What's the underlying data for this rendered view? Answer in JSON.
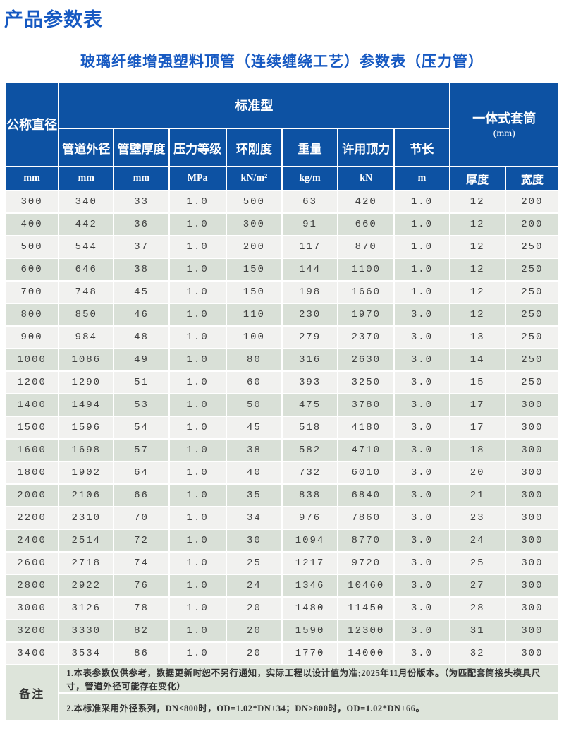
{
  "page": {
    "title": "产品参数表",
    "subtitle": "玻璃纤维增强塑料顶管（连续缠绕工艺）参数表（压力管）"
  },
  "colors": {
    "title_blue": "#1659c2",
    "header_blue": "#0d52a3",
    "row_light": "#f1f1ef",
    "row_green": "#d9e0d7",
    "notes_bg": "#dde4da"
  },
  "table": {
    "header": {
      "col_nominal_diameter": "公称直径",
      "group_standard": "标准型",
      "group_sleeve_line1": "一体式套筒",
      "group_sleeve_line2": "(mm)",
      "sub_columns": [
        "管道外径",
        "管壁厚度",
        "压力等级",
        "环刚度",
        "重量",
        "许用顶力",
        "节长"
      ],
      "units": [
        "mm",
        "mm",
        "mm",
        "MPa",
        "kN/m²",
        "kg/m",
        "kN",
        "m"
      ],
      "sleeve_sub_columns": [
        "厚度",
        "宽度"
      ]
    },
    "rows": [
      [
        "300",
        "340",
        "33",
        "1.0",
        "500",
        "63",
        "420",
        "1.0",
        "12",
        "200"
      ],
      [
        "400",
        "442",
        "36",
        "1.0",
        "300",
        "91",
        "660",
        "1.0",
        "12",
        "200"
      ],
      [
        "500",
        "544",
        "37",
        "1.0",
        "200",
        "117",
        "870",
        "1.0",
        "12",
        "250"
      ],
      [
        "600",
        "646",
        "38",
        "1.0",
        "150",
        "144",
        "1100",
        "1.0",
        "12",
        "250"
      ],
      [
        "700",
        "748",
        "45",
        "1.0",
        "150",
        "198",
        "1660",
        "1.0",
        "12",
        "250"
      ],
      [
        "800",
        "850",
        "46",
        "1.0",
        "110",
        "230",
        "1970",
        "3.0",
        "12",
        "250"
      ],
      [
        "900",
        "984",
        "48",
        "1.0",
        "100",
        "279",
        "2370",
        "3.0",
        "13",
        "250"
      ],
      [
        "1000",
        "1086",
        "49",
        "1.0",
        "80",
        "316",
        "2630",
        "3.0",
        "14",
        "250"
      ],
      [
        "1200",
        "1290",
        "51",
        "1.0",
        "60",
        "393",
        "3250",
        "3.0",
        "15",
        "250"
      ],
      [
        "1400",
        "1494",
        "53",
        "1.0",
        "50",
        "475",
        "3780",
        "3.0",
        "17",
        "300"
      ],
      [
        "1500",
        "1596",
        "54",
        "1.0",
        "45",
        "518",
        "4180",
        "3.0",
        "17",
        "300"
      ],
      [
        "1600",
        "1698",
        "57",
        "1.0",
        "38",
        "582",
        "4710",
        "3.0",
        "18",
        "300"
      ],
      [
        "1800",
        "1902",
        "64",
        "1.0",
        "40",
        "732",
        "6010",
        "3.0",
        "20",
        "300"
      ],
      [
        "2000",
        "2106",
        "66",
        "1.0",
        "35",
        "838",
        "6840",
        "3.0",
        "21",
        "300"
      ],
      [
        "2200",
        "2310",
        "70",
        "1.0",
        "34",
        "976",
        "7860",
        "3.0",
        "23",
        "300"
      ],
      [
        "2400",
        "2514",
        "72",
        "1.0",
        "30",
        "1094",
        "8770",
        "3.0",
        "24",
        "300"
      ],
      [
        "2600",
        "2718",
        "74",
        "1.0",
        "25",
        "1217",
        "9720",
        "3.0",
        "25",
        "300"
      ],
      [
        "2800",
        "2922",
        "76",
        "1.0",
        "24",
        "1346",
        "10460",
        "3.0",
        "27",
        "300"
      ],
      [
        "3000",
        "3126",
        "78",
        "1.0",
        "20",
        "1480",
        "11450",
        "3.0",
        "28",
        "300"
      ],
      [
        "3200",
        "3330",
        "82",
        "1.0",
        "20",
        "1590",
        "12300",
        "3.0",
        "31",
        "300"
      ],
      [
        "3400",
        "3534",
        "86",
        "1.0",
        "20",
        "1770",
        "14000",
        "3.0",
        "32",
        "300"
      ]
    ],
    "notes": {
      "label": "备注",
      "items": [
        "1.本表参数仅供参考，数据更新时恕不另行通知，实际工程以设计值为准;2025年11月份版本。（为匹配套筒接头模具尺寸，管道外径可能存在变化）",
        "2.本标准采用外径系列，DN≤800时，OD=1.02*DN+34；DN>800时，OD=1.02*DN+66。"
      ]
    }
  }
}
